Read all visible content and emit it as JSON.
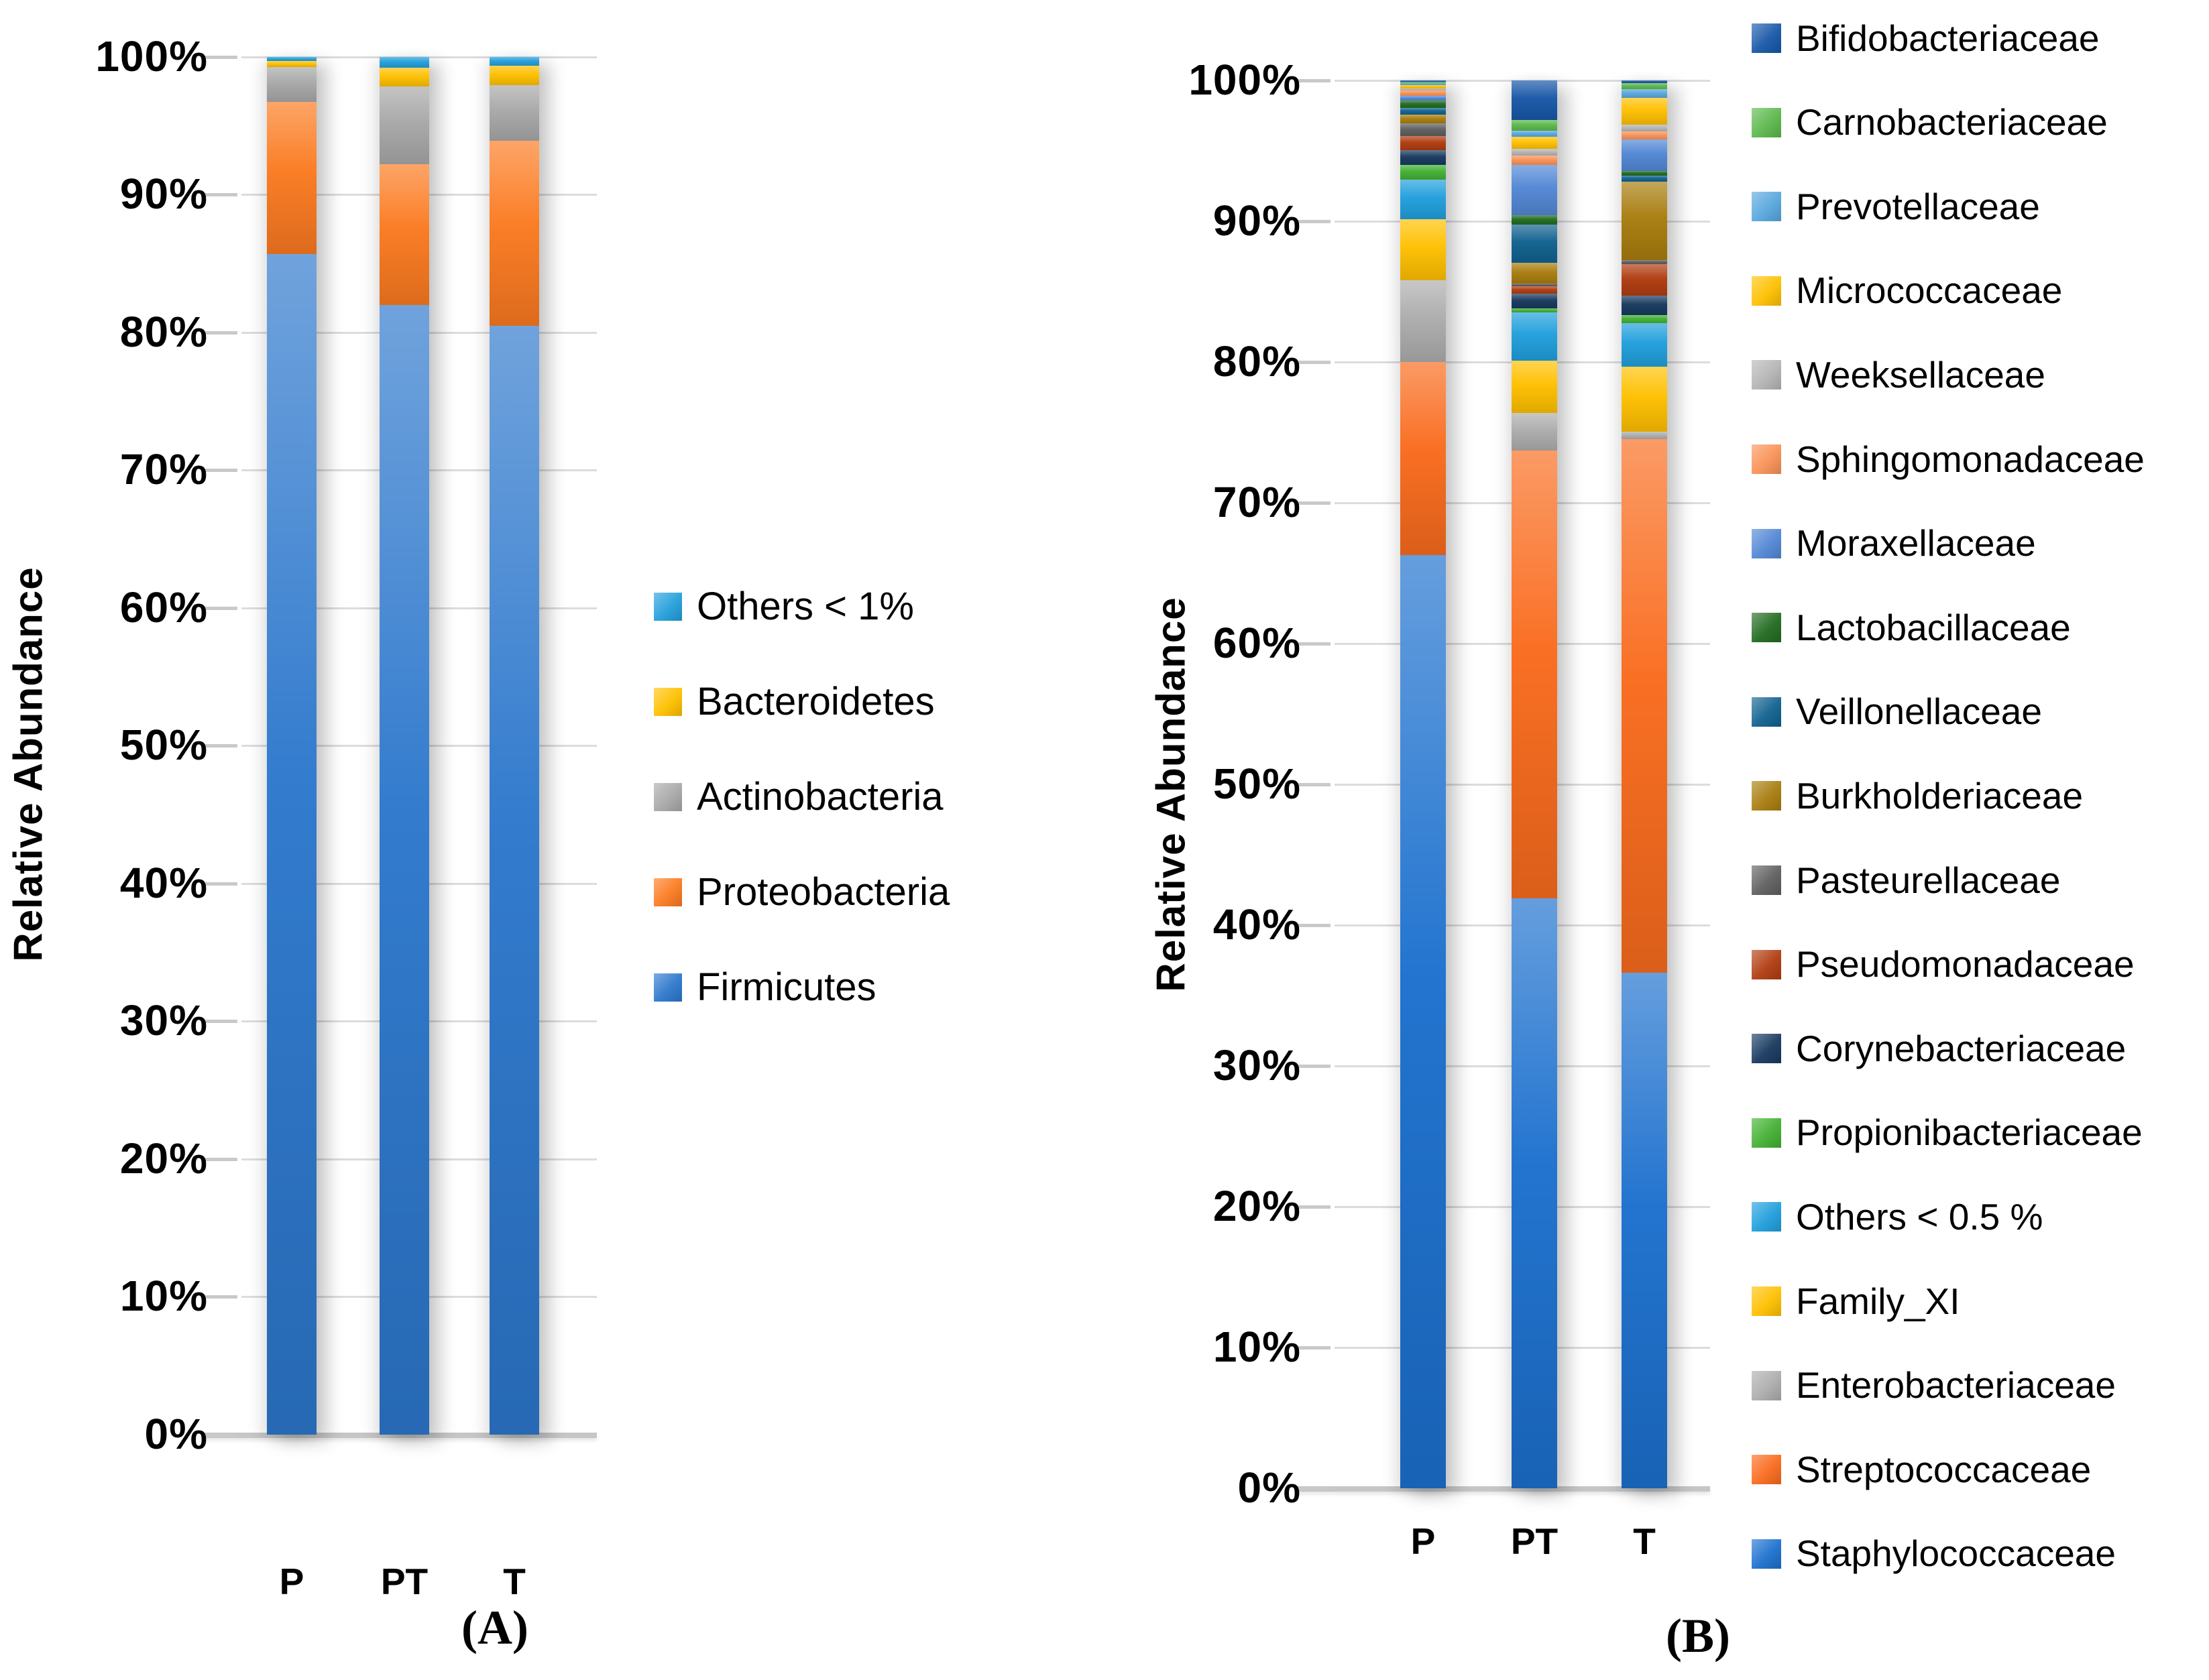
{
  "chart_data": [
    {
      "type": "bar",
      "stacked": true,
      "panel": "A",
      "caption": "(A)",
      "ylabel": "Relative Abundance",
      "ylim": [
        0,
        100
      ],
      "grid": true,
      "legend_position": "right",
      "y_ticks": [
        "100%",
        "90%",
        "80%",
        "70%",
        "60%",
        "50%",
        "40%",
        "30%",
        "20%",
        "10%",
        "0%"
      ],
      "categories": [
        "P",
        "PT",
        "T"
      ],
      "series": [
        {
          "name": "Others < 1%",
          "color": "#239FDB",
          "values": [
            0.3,
            0.8,
            0.65
          ]
        },
        {
          "name": "Bacteroidetes",
          "color": "#FFC000",
          "values": [
            0.45,
            1.35,
            1.4
          ]
        },
        {
          "name": "Actinobacteria",
          "color": "#A8A8A8",
          "values": [
            2.5,
            5.65,
            4.05
          ]
        },
        {
          "name": "Proteobacteria",
          "color": "#FB7A20",
          "values": [
            11.05,
            10.2,
            13.4
          ]
        },
        {
          "name": "Firmicutes",
          "color": "#2C77CC",
          "values": [
            85.7,
            82.0,
            80.5
          ]
        }
      ]
    },
    {
      "type": "bar",
      "stacked": true,
      "panel": "B",
      "caption": "(B)",
      "ylabel": "Relative Abundance",
      "ylim": [
        0,
        100
      ],
      "grid": true,
      "legend_position": "right",
      "y_ticks": [
        "100%",
        "90%",
        "80%",
        "70%",
        "60%",
        "50%",
        "40%",
        "30%",
        "20%",
        "10%",
        "0%"
      ],
      "categories": [
        "P",
        "PT",
        "T"
      ],
      "series": [
        {
          "name": "Bifidobacteriaceae",
          "color": "#1757A8",
          "values": [
            0.1,
            2.8,
            0.2
          ]
        },
        {
          "name": "Carnobacteriaceae",
          "color": "#5CB84C",
          "values": [
            0.1,
            0.75,
            0.4
          ]
        },
        {
          "name": "Prevotellaceae",
          "color": "#58A7DD",
          "values": [
            0.15,
            0.45,
            0.65
          ]
        },
        {
          "name": "Micrococcaceae",
          "color": "#FFC000",
          "values": [
            0.2,
            0.85,
            1.9
          ]
        },
        {
          "name": "Weeksellaceae",
          "color": "#B5B5B5",
          "values": [
            0.15,
            0.5,
            0.45
          ]
        },
        {
          "name": "Sphingomonadaceae",
          "color": "#F99257",
          "values": [
            0.4,
            0.65,
            0.6
          ]
        },
        {
          "name": "Moraxellaceae",
          "color": "#5287D5",
          "values": [
            0.35,
            3.55,
            2.25
          ]
        },
        {
          "name": "Lactobacillaceae",
          "color": "#216B20",
          "values": [
            0.5,
            0.7,
            0.3
          ]
        },
        {
          "name": "Veillonellaceae",
          "color": "#10618F",
          "values": [
            0.5,
            2.7,
            0.45
          ]
        },
        {
          "name": "Burkholderiaceae",
          "color": "#A87D0E",
          "values": [
            0.6,
            1.5,
            5.55
          ]
        },
        {
          "name": "Pasteurellaceae",
          "color": "#5F5F5F",
          "values": [
            0.9,
            0.15,
            0.3
          ]
        },
        {
          "name": "Pseudomonadaceae",
          "color": "#B03C10",
          "values": [
            1.0,
            0.55,
            2.25
          ]
        },
        {
          "name": "Corynebacteriaceae",
          "color": "#17395F",
          "values": [
            1.05,
            1.05,
            1.35
          ]
        },
        {
          "name": "Propionibacteriaceae",
          "color": "#42B032",
          "values": [
            1.05,
            0.3,
            0.6
          ]
        },
        {
          "name": "Others < 0.5 %",
          "color": "#209FDC",
          "values": [
            2.8,
            3.4,
            3.1
          ]
        },
        {
          "name": "Family_XI",
          "color": "#FFC000",
          "values": [
            4.35,
            3.7,
            4.6
          ]
        },
        {
          "name": "Enterobacteriaceae",
          "color": "#ADADAD",
          "values": [
            5.8,
            2.7,
            0.55
          ]
        },
        {
          "name": "Streptococcaceae",
          "color": "#F96B1D",
          "values": [
            13.7,
            31.8,
            37.9
          ]
        },
        {
          "name": "Staphylococcaceae",
          "color": "#1C70CE",
          "values": [
            66.3,
            41.9,
            36.6
          ]
        }
      ]
    }
  ]
}
